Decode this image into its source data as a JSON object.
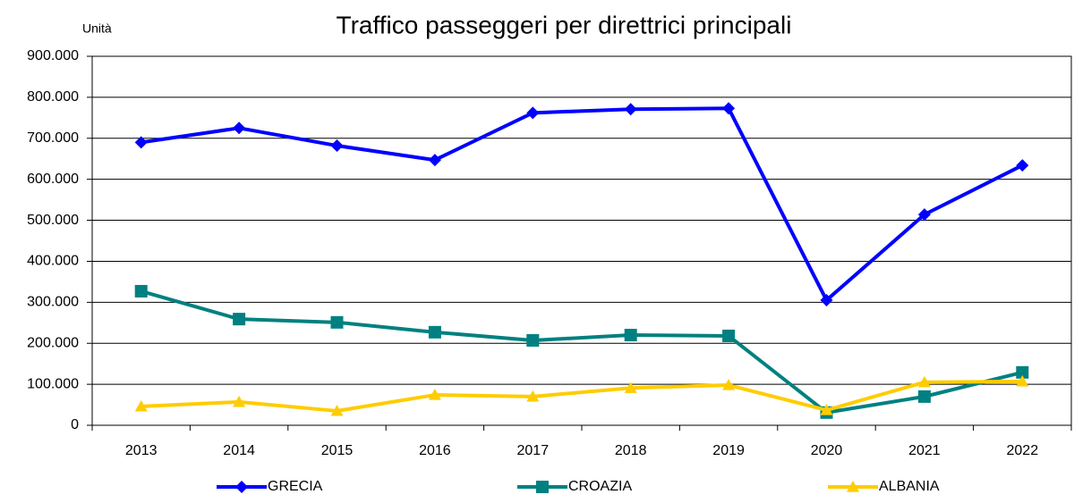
{
  "chart_data": {
    "type": "line",
    "title": "Traffico passeggeri per direttrici principali",
    "y_label": "Unità",
    "categories": [
      "2013",
      "2014",
      "2015",
      "2016",
      "2017",
      "2018",
      "2019",
      "2020",
      "2021",
      "2022"
    ],
    "series": [
      {
        "name": "GRECIA",
        "color": "#0000ff",
        "marker": "diamond",
        "values": [
          690000,
          725000,
          682000,
          647000,
          762000,
          771000,
          773000,
          305000,
          514000,
          634000
        ]
      },
      {
        "name": "CROAZIA",
        "color": "#008080",
        "marker": "square",
        "values": [
          327000,
          259000,
          251000,
          227000,
          207000,
          220000,
          218000,
          31000,
          70000,
          129000
        ]
      },
      {
        "name": "ALBANIA",
        "color": "#ffcc00",
        "marker": "triangle",
        "values": [
          46000,
          57000,
          35000,
          74000,
          70000,
          91000,
          98000,
          37000,
          105000,
          107000
        ]
      }
    ],
    "ylim": [
      0,
      900000
    ],
    "yticks": [
      0,
      {
        "value": 100000,
        "label": "100.000"
      },
      {
        "value": 200000,
        "label": "200.000"
      },
      {
        "value": 300000,
        "label": "300.000"
      },
      {
        "value": 400000,
        "label": "400.000"
      },
      {
        "value": 500000,
        "label": "500.000"
      },
      {
        "value": 600000,
        "label": "600.000"
      },
      {
        "value": 700000,
        "label": "700.000"
      },
      {
        "value": 800000,
        "label": "800.000"
      },
      {
        "value": 900000,
        "label": "900.000"
      }
    ],
    "grid": true,
    "legend": "bottom"
  }
}
